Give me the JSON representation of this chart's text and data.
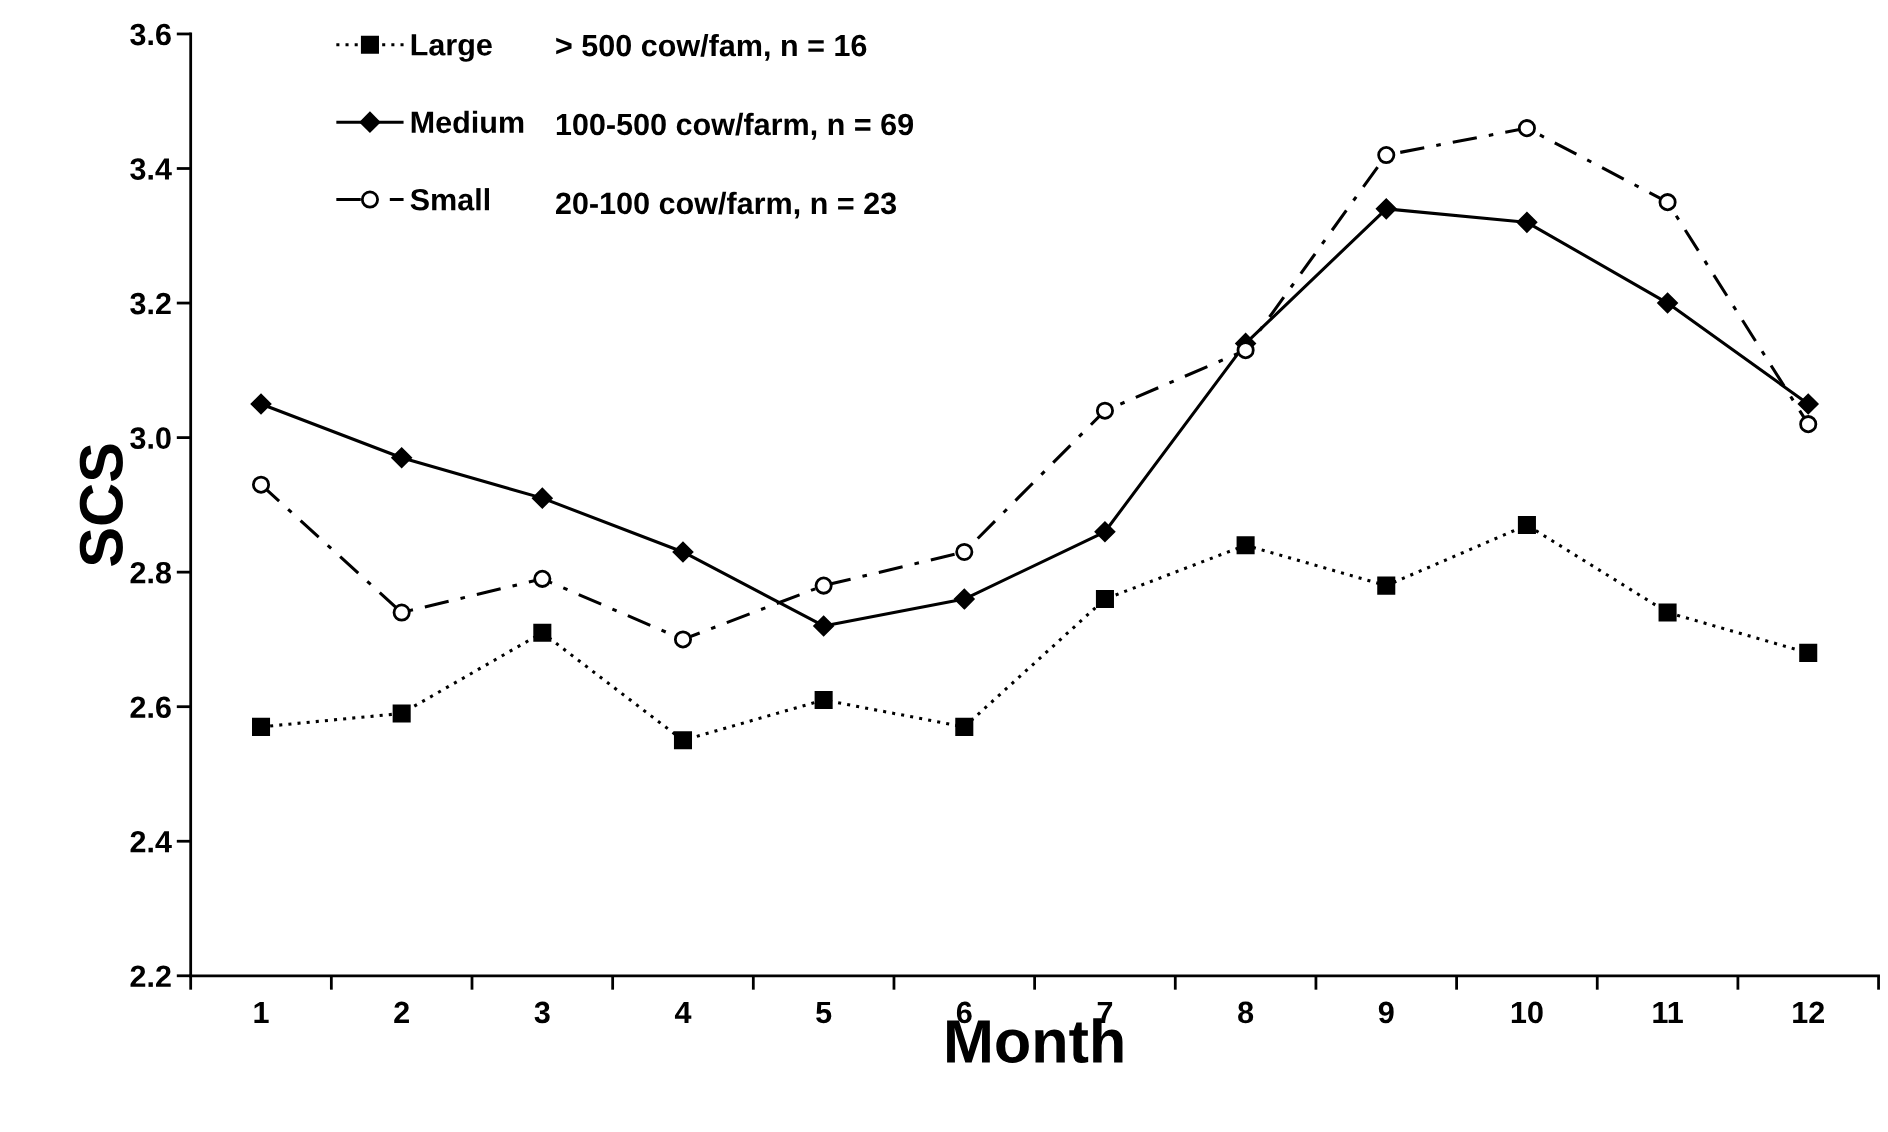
{
  "chart_data": {
    "type": "line",
    "xlabel": "Month",
    "ylabel": "SCS",
    "categories": [
      "1",
      "2",
      "3",
      "4",
      "5",
      "6",
      "7",
      "8",
      "9",
      "10",
      "11",
      "12"
    ],
    "ylim": [
      2.2,
      3.6
    ],
    "yticks": [
      {
        "value": 2.2,
        "label": "2.2"
      },
      {
        "value": 2.4,
        "label": "2.4"
      },
      {
        "value": 2.6,
        "label": "2.6"
      },
      {
        "value": 2.8,
        "label": "2.8"
      },
      {
        "value": 3.0,
        "label": "3.0"
      },
      {
        "value": 3.2,
        "label": "3.2"
      },
      {
        "value": 3.4,
        "label": "3.4"
      },
      {
        "value": 3.6,
        "label": "3.6"
      }
    ],
    "grid": false,
    "legend": "top left",
    "series": [
      {
        "name": "Large",
        "color": "#000000",
        "marker": "square",
        "line_style": "dotted",
        "values": [
          2.57,
          2.59,
          2.71,
          2.55,
          2.61,
          2.57,
          2.76,
          2.84,
          2.78,
          2.87,
          2.74,
          2.68
        ]
      },
      {
        "name": "Medium",
        "color": "#000000",
        "marker": "diamond",
        "line_style": "solid",
        "values": [
          3.05,
          2.97,
          2.91,
          2.83,
          2.72,
          2.76,
          2.86,
          3.14,
          3.34,
          3.32,
          3.2,
          3.05
        ]
      },
      {
        "name": "Small",
        "color": "#000000",
        "marker": "circle",
        "line_style": "dashdot",
        "values": [
          2.93,
          2.74,
          2.79,
          2.7,
          2.78,
          2.83,
          3.04,
          3.13,
          3.42,
          3.46,
          3.35,
          3.02
        ]
      }
    ],
    "annotations": [
      "> 500 cow/fam, n = 16",
      "100-500 cow/farm, n = 69",
      "20-100 cow/farm, n = 23"
    ]
  }
}
